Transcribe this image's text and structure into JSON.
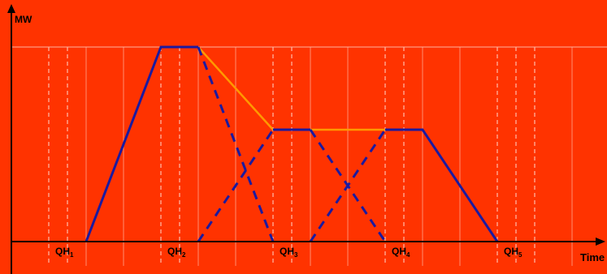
{
  "colors": {
    "background": "#ff3300",
    "solid_line": "#1a1aa0",
    "dashed_line": "#1a1aa0",
    "envelope": "#ff9900",
    "axis": "#000000",
    "grid_solid": "#ff8c70",
    "grid_dashed": "#ffd7cc"
  },
  "axes": {
    "y_label": "MW",
    "x_label": "Time"
  },
  "quarter_hours": [
    {
      "base": "QH",
      "sub": "1"
    },
    {
      "base": "QH",
      "sub": "2"
    },
    {
      "base": "QH",
      "sub": "3"
    },
    {
      "base": "QH",
      "sub": "4"
    },
    {
      "base": "QH",
      "sub": "5"
    }
  ]
}
